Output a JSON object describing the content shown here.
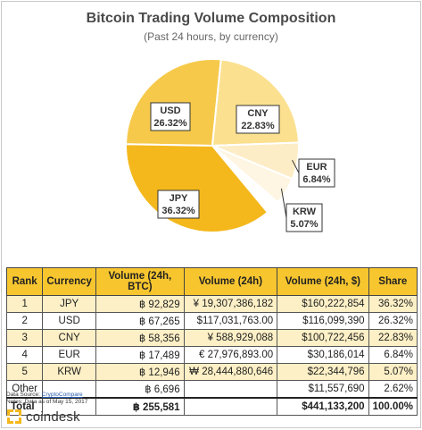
{
  "chart_data": {
    "type": "pie",
    "title": "Bitcoin Trading Volume Composition",
    "subtitle": "(Past 24 hours, by currency)",
    "slices": [
      {
        "label": "JPY",
        "value": 36.32,
        "label_text": "36.32%",
        "color": "#f4b81c"
      },
      {
        "label": "USD",
        "value": 26.32,
        "label_text": "26.32%",
        "color": "#f6c94a"
      },
      {
        "label": "CNY",
        "value": 22.83,
        "label_text": "22.83%",
        "color": "#fbe08f"
      },
      {
        "label": "EUR",
        "value": 6.84,
        "label_text": "6.84%",
        "color": "#fdedc6"
      },
      {
        "label": "KRW",
        "value": 5.07,
        "label_text": "5.07%",
        "color": "#fef6e2"
      },
      {
        "label": "Other",
        "value": 2.62,
        "color": "#ffffff"
      }
    ],
    "table": {
      "headers": [
        "Rank",
        "Currency",
        "Volume (24h, BTC)",
        "Volume (24h)",
        "Volume (24h, $)",
        "Share"
      ],
      "rows": [
        [
          "1",
          "JPY",
          "฿ 92,829",
          "¥ 19,307,386,182",
          "$160,222,854",
          "36.32%"
        ],
        [
          "2",
          "USD",
          "฿ 67,265",
          "$117,031,763.00",
          "$116,099,390",
          "26.32%"
        ],
        [
          "3",
          "CNY",
          "฿ 58,356",
          "¥ 588,929,088",
          "$100,722,456",
          "22.83%"
        ],
        [
          "4",
          "EUR",
          "฿ 17,489",
          "€ 27,976,893.00",
          "$30,186,014",
          "6.84%"
        ],
        [
          "5",
          "KRW",
          "฿ 12,946",
          "₩ 28,444,880,646",
          "$22,344,796",
          "5.07%"
        ],
        [
          "Other",
          "",
          "฿ 6,696",
          "",
          "$11,557,690",
          "2.62%"
        ]
      ],
      "total": [
        "Total",
        "",
        "฿ 255,581",
        "",
        "$441,133,200",
        "100.00%"
      ]
    }
  },
  "footer": {
    "source_prefix": "Data Source: ",
    "source_link": "CryptoCompare",
    "notes": "Notes: Data as of May 15, 2017",
    "brand": "coindesk",
    "brand_color": "#f4b81c"
  }
}
